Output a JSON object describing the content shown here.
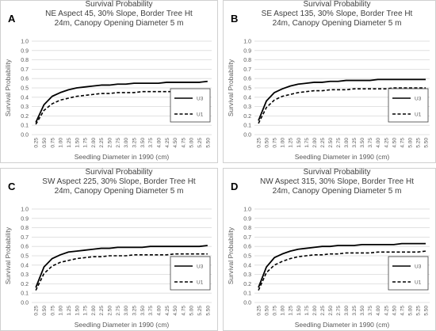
{
  "chart_data": [
    {
      "type": "line",
      "letter": "A",
      "title": "Survival Probability",
      "subtitle_line1": "NE Aspect 45, 30% Slope, Border Tree Ht",
      "subtitle_line2": "24m, Canopy Opening Diameter 5 m",
      "xlabel": "Seedling Diameter in 1990 (cm)",
      "ylabel": "Survival Probability",
      "ylim": [
        0,
        1
      ],
      "yticks": [
        "0.0",
        "0.1",
        "0.2",
        "0.3",
        "0.4",
        "0.5",
        "0.6",
        "0.7",
        "0.8",
        "0.9",
        "1.0"
      ],
      "x": [
        "0.25",
        "0.50",
        "0.75",
        "1.00",
        "1.25",
        "1.50",
        "1.75",
        "2.00",
        "2.25",
        "2.50",
        "2.75",
        "3.00",
        "3.25",
        "3.50",
        "3.75",
        "4.00",
        "4.25",
        "4.50",
        "4.75",
        "5.00",
        "5.25",
        "5.50"
      ],
      "series": [
        {
          "name": "U3",
          "style": "solid",
          "values": [
            0.13,
            0.32,
            0.41,
            0.45,
            0.48,
            0.5,
            0.51,
            0.52,
            0.53,
            0.53,
            0.54,
            0.54,
            0.55,
            0.55,
            0.55,
            0.55,
            0.56,
            0.56,
            0.56,
            0.56,
            0.56,
            0.57
          ]
        },
        {
          "name": "U1",
          "style": "dashed",
          "values": [
            0.11,
            0.26,
            0.33,
            0.37,
            0.39,
            0.41,
            0.42,
            0.43,
            0.44,
            0.44,
            0.45,
            0.45,
            0.45,
            0.46,
            0.46,
            0.46,
            0.46,
            0.46,
            0.47,
            0.47,
            0.47,
            0.47
          ]
        }
      ]
    },
    {
      "type": "line",
      "letter": "B",
      "title": "Survival Probability",
      "subtitle_line1": "SE Aspect 135, 30% Slope, Border Tree Ht",
      "subtitle_line2": "24m, Canopy Opening Diameter 5 m",
      "xlabel": "Seedling Diameter in 1990 (cm)",
      "ylabel": "Survival Probability",
      "ylim": [
        0,
        1
      ],
      "yticks": [
        "0.0",
        "0.1",
        "0.2",
        "0.3",
        "0.4",
        "0.5",
        "0.6",
        "0.7",
        "0.8",
        "0.9",
        "1.0"
      ],
      "x": [
        "0.25",
        "0.50",
        "0.75",
        "1.00",
        "1.25",
        "1.50",
        "1.75",
        "2.00",
        "2.25",
        "2.50",
        "2.75",
        "3.00",
        "3.25",
        "3.50",
        "3.75",
        "4.00",
        "4.25",
        "4.50",
        "4.75",
        "5.00",
        "5.25",
        "5.50"
      ],
      "series": [
        {
          "name": "U3",
          "style": "solid",
          "values": [
            0.15,
            0.36,
            0.45,
            0.49,
            0.52,
            0.54,
            0.55,
            0.56,
            0.56,
            0.57,
            0.57,
            0.58,
            0.58,
            0.58,
            0.58,
            0.59,
            0.59,
            0.59,
            0.59,
            0.59,
            0.59,
            0.59
          ]
        },
        {
          "name": "U1",
          "style": "dashed",
          "values": [
            0.12,
            0.29,
            0.37,
            0.41,
            0.43,
            0.45,
            0.46,
            0.47,
            0.47,
            0.48,
            0.48,
            0.48,
            0.49,
            0.49,
            0.49,
            0.49,
            0.49,
            0.5,
            0.5,
            0.5,
            0.5,
            0.5
          ]
        }
      ]
    },
    {
      "type": "line",
      "letter": "C",
      "title": "Survival Probability",
      "subtitle_line1": "SW Aspect 225, 30% Slope, Border Tree Ht",
      "subtitle_line2": "24m, Canopy Opening Diameter 5 m",
      "xlabel": "Seedling Diameter in 1990 (cm)",
      "ylabel": "Survival Probability",
      "ylim": [
        0,
        1
      ],
      "yticks": [
        "0.0",
        "0.1",
        "0.2",
        "0.3",
        "0.4",
        "0.5",
        "0.6",
        "0.7",
        "0.8",
        "0.9",
        "1.0"
      ],
      "x": [
        "0.25",
        "0.50",
        "0.75",
        "1.00",
        "1.25",
        "1.50",
        "1.75",
        "2.00",
        "2.25",
        "2.50",
        "2.75",
        "3.00",
        "3.25",
        "3.50",
        "3.75",
        "4.00",
        "4.25",
        "4.50",
        "4.75",
        "5.00",
        "5.25",
        "5.50"
      ],
      "series": [
        {
          "name": "U3",
          "style": "solid",
          "values": [
            0.16,
            0.38,
            0.47,
            0.51,
            0.54,
            0.55,
            0.56,
            0.57,
            0.58,
            0.58,
            0.59,
            0.59,
            0.59,
            0.59,
            0.6,
            0.6,
            0.6,
            0.6,
            0.6,
            0.6,
            0.6,
            0.61
          ]
        },
        {
          "name": "U1",
          "style": "dashed",
          "values": [
            0.13,
            0.31,
            0.39,
            0.43,
            0.45,
            0.47,
            0.48,
            0.49,
            0.49,
            0.5,
            0.5,
            0.5,
            0.51,
            0.51,
            0.51,
            0.51,
            0.51,
            0.52,
            0.52,
            0.52,
            0.52,
            0.52
          ]
        }
      ]
    },
    {
      "type": "line",
      "letter": "D",
      "title": "Survival Probability",
      "subtitle_line1": "NW Aspect 315, 30% Slope, Border Tree Ht",
      "subtitle_line2": "24m, Canopy Opening Diameter 5 m",
      "xlabel": "Seedling Diameter in 1990 (cm)",
      "ylabel": "Survival Probability",
      "ylim": [
        0,
        1
      ],
      "yticks": [
        "0.0",
        "0.1",
        "0.2",
        "0.3",
        "0.4",
        "0.5",
        "0.6",
        "0.7",
        "0.8",
        "0.9",
        "1.0"
      ],
      "x": [
        "0.25",
        "0.50",
        "0.75",
        "1.00",
        "1.25",
        "1.50",
        "1.75",
        "2.00",
        "2.25",
        "2.50",
        "2.75",
        "3.00",
        "3.25",
        "3.50",
        "3.75",
        "4.00",
        "4.25",
        "4.50",
        "4.75",
        "5.00",
        "5.25",
        "5.50"
      ],
      "series": [
        {
          "name": "U3",
          "style": "solid",
          "values": [
            0.16,
            0.38,
            0.48,
            0.52,
            0.55,
            0.57,
            0.58,
            0.59,
            0.6,
            0.6,
            0.61,
            0.61,
            0.61,
            0.62,
            0.62,
            0.62,
            0.62,
            0.62,
            0.63,
            0.63,
            0.63,
            0.63
          ]
        },
        {
          "name": "U1",
          "style": "dashed",
          "values": [
            0.13,
            0.32,
            0.4,
            0.44,
            0.47,
            0.49,
            0.5,
            0.51,
            0.51,
            0.52,
            0.52,
            0.53,
            0.53,
            0.53,
            0.53,
            0.54,
            0.54,
            0.54,
            0.54,
            0.54,
            0.54,
            0.55
          ]
        }
      ]
    }
  ]
}
